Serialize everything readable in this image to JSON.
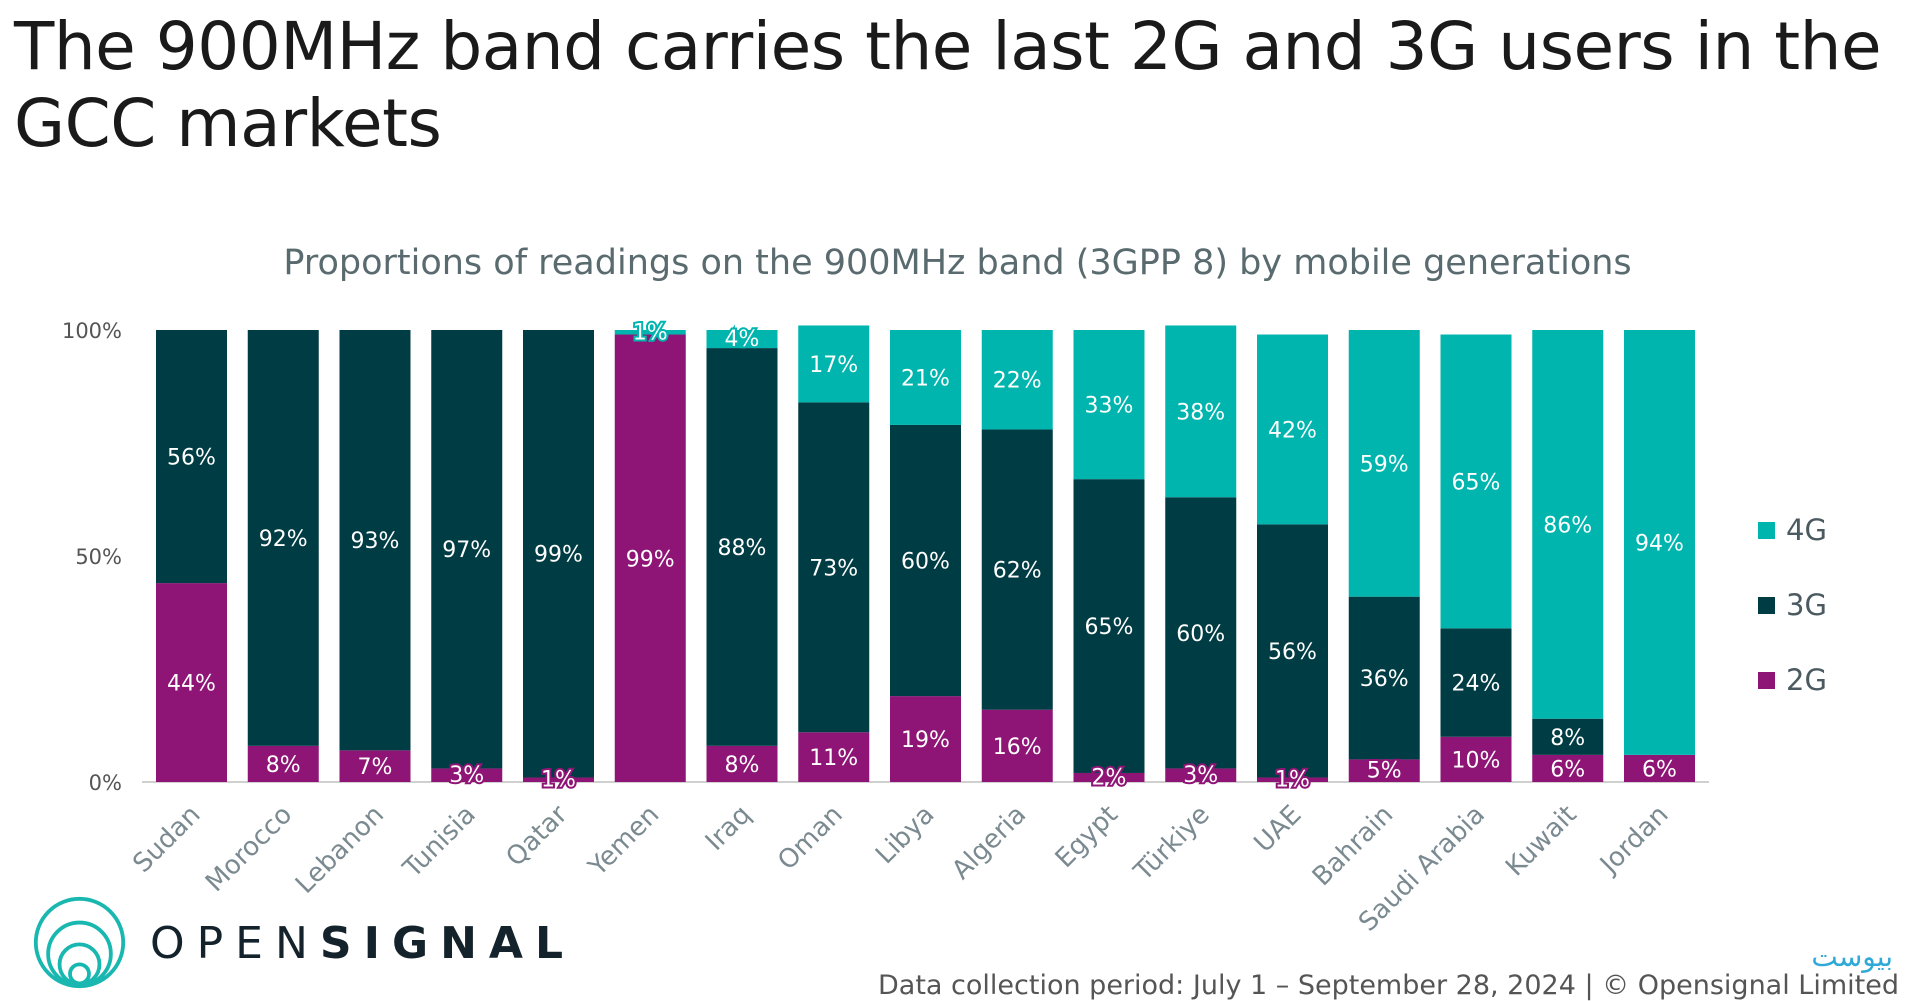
{
  "title": "The 900MHz band carries the last 2G and 3G users in the GCC markets",
  "brand": {
    "prefix": "OPEN",
    "suffix": "SIGNAL"
  },
  "footer": "Data collection period: July 1 – September 28, 2024 | © Opensignal Limited",
  "watermark": "بیوست",
  "colors": {
    "4G": "#00b5ad",
    "3G": "#003c43",
    "2G": "#8e1475"
  },
  "chart_data": {
    "type": "bar",
    "stacked": true,
    "title": "Proportions of readings on the 900MHz band (3GPP 8) by mobile generations",
    "ylim": [
      0,
      100
    ],
    "yticks": [
      "0%",
      "50%",
      "100%"
    ],
    "legend_position": "right",
    "categories": [
      "Sudan",
      "Morocco",
      "Lebanon",
      "Tunisia",
      "Qatar",
      "Yemen",
      "Iraq",
      "Oman",
      "Libya",
      "Algeria",
      "Egypt",
      "Türkiye",
      "UAE",
      "Bahrain",
      "Saudi Arabia",
      "Kuwait",
      "Jordan"
    ],
    "series": [
      {
        "name": "2G",
        "values": [
          44,
          8,
          7,
          3,
          1,
          99,
          8,
          11,
          19,
          16,
          2,
          3,
          1,
          5,
          10,
          6,
          6
        ]
      },
      {
        "name": "3G",
        "values": [
          56,
          92,
          93,
          97,
          99,
          0,
          88,
          73,
          60,
          62,
          65,
          60,
          56,
          36,
          24,
          8,
          0
        ]
      },
      {
        "name": "4G",
        "values": [
          0,
          0,
          0,
          0,
          0,
          1,
          4,
          17,
          21,
          22,
          33,
          38,
          42,
          59,
          65,
          86,
          94
        ]
      }
    ],
    "legend_order": [
      "4G",
      "3G",
      "2G"
    ]
  }
}
